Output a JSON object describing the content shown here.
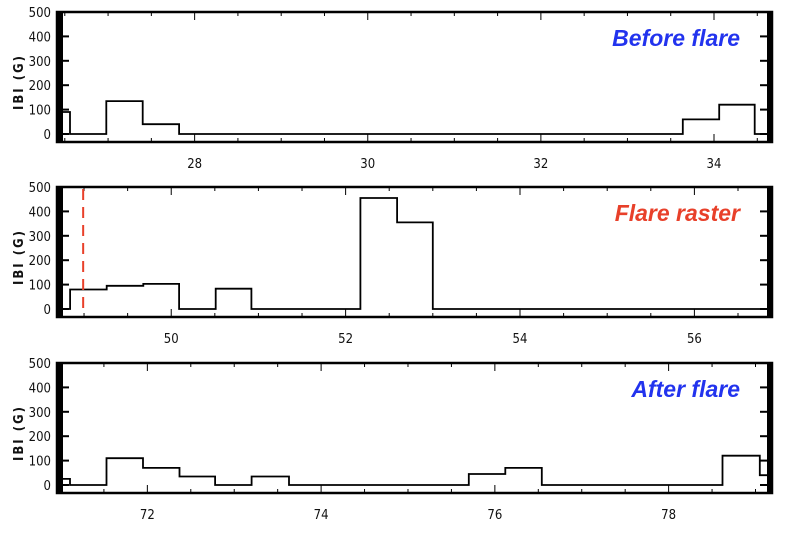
{
  "chart_data": [
    {
      "type": "line",
      "step": true,
      "title": "Before flare",
      "title_color": "#2233ee",
      "xlabel": "",
      "ylabel": "IBI (G)",
      "xlim": [
        26.41,
        34.67
      ],
      "ylim": [
        0,
        500
      ],
      "xticks": [
        28,
        30,
        32,
        34
      ],
      "xtick_labels": [
        "28",
        "30",
        "32",
        "34"
      ],
      "yticks": [
        0,
        100,
        200,
        300,
        400,
        500
      ],
      "ytick_labels": [
        "0",
        "100",
        "200",
        "300",
        "400",
        "500"
      ],
      "edges": [
        26.41,
        26.56,
        26.98,
        27.4,
        27.82,
        33.64,
        34.06,
        34.47,
        34.67
      ],
      "values": [
        90,
        0,
        135,
        40,
        0,
        60,
        120,
        0
      ]
    },
    {
      "type": "line",
      "step": true,
      "title": "Flare raster",
      "title_color": "#e8402a",
      "xlabel": "",
      "ylabel": "IBI (G)",
      "xlim": [
        48.69,
        56.89
      ],
      "ylim": [
        0,
        500
      ],
      "xticks": [
        50,
        52,
        54,
        56
      ],
      "xtick_labels": [
        "50",
        "52",
        "54",
        "56"
      ],
      "yticks": [
        0,
        100,
        200,
        300,
        400,
        500
      ],
      "ytick_labels": [
        "0",
        "100",
        "200",
        "300",
        "400",
        "500"
      ],
      "edges": [
        48.69,
        48.84,
        49.26,
        49.68,
        50.09,
        50.51,
        50.92,
        52.17,
        52.59,
        53.0,
        56.89
      ],
      "values": [
        0,
        80,
        95,
        103,
        0,
        83,
        0,
        455,
        355,
        0
      ],
      "marker_line": {
        "x": 48.99,
        "color": "#e8402a",
        "style": "dashed"
      }
    },
    {
      "type": "line",
      "step": true,
      "title": "After flare",
      "title_color": "#2233ee",
      "xlabel": "",
      "ylabel": "IBI (G)",
      "xlim": [
        70.96,
        79.19
      ],
      "ylim": [
        0,
        500
      ],
      "xticks": [
        72,
        74,
        76,
        78
      ],
      "xtick_labels": [
        "72",
        "74",
        "76",
        "78"
      ],
      "yticks": [
        0,
        100,
        200,
        300,
        400,
        500
      ],
      "ytick_labels": [
        "0",
        "100",
        "200",
        "300",
        "400",
        "500"
      ],
      "edges": [
        70.96,
        71.11,
        71.53,
        71.95,
        72.37,
        72.78,
        73.2,
        73.63,
        75.7,
        76.12,
        76.54,
        78.62,
        79.05,
        79.19
      ],
      "values": [
        25,
        0,
        110,
        70,
        35,
        0,
        35,
        0,
        45,
        70,
        0,
        120,
        40
      ]
    }
  ]
}
